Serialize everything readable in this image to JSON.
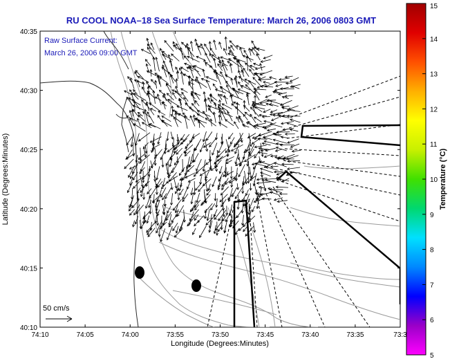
{
  "title": "RU COOL  NOAA–18  Sea Surface Temperature:  March 26, 2006 0803 GMT",
  "map": {
    "annotation_line1": "Raw Surface Current:",
    "annotation_line2": "March 26, 2006 09:00 GMT",
    "scale_label": "50 cm/s",
    "xlabel": "Longitude (Degrees:Minutes)",
    "ylabel": "Latitude (Degrees:Minutes)",
    "x_ticks": [
      "74:10",
      "74:05",
      "74:00",
      "73:55",
      "73:50",
      "73:45",
      "73:40",
      "73:35",
      "73:3"
    ],
    "y_ticks": [
      "40:35",
      "40:30",
      "40:25",
      "40:20",
      "40:15",
      "40:10"
    ]
  },
  "colorbar": {
    "label": "Temperature (°C)",
    "ticks": [
      "15",
      "14",
      "13",
      "12",
      "11",
      "10",
      "9",
      "8",
      "7",
      "6",
      "5"
    ],
    "min": 5,
    "max": 15,
    "colors": [
      "#ff00ff",
      "#9a00c8",
      "#0000ff",
      "#0088ff",
      "#00e0ff",
      "#00d870",
      "#40e000",
      "#c8f000",
      "#ffff00",
      "#ffb000",
      "#ff5000",
      "#e00000",
      "#a00000"
    ]
  }
}
